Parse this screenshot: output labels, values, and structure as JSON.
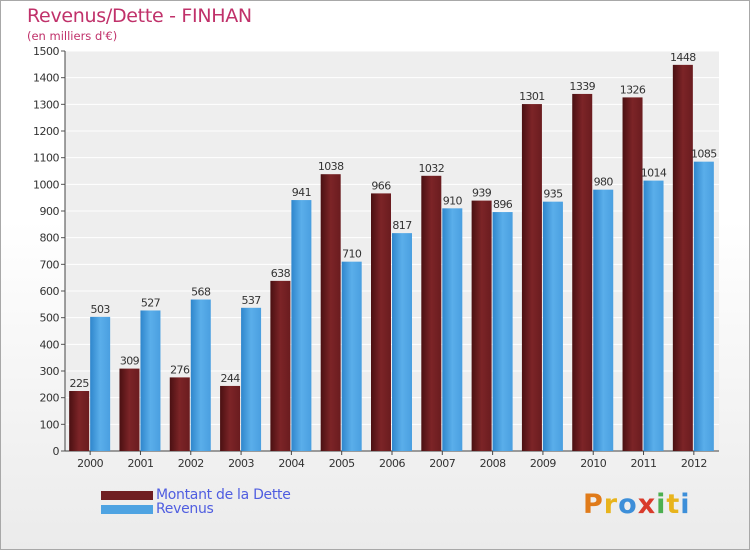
{
  "title": "Revenus/Dette - FINHAN",
  "subtitle": "(en milliers d'€)",
  "colors": {
    "debt": "#701f22",
    "revenue": "#4ea3e2"
  },
  "legend": {
    "debt_label": "Montant de la Dette",
    "revenue_label": "Revenus"
  },
  "logo": {
    "letters": [
      "P",
      "r",
      "o",
      "x",
      "i",
      "t",
      "i"
    ],
    "colors": [
      "#e07b1a",
      "#e8b41c",
      "#3d8fd9",
      "#d93b2b",
      "#4caf50",
      "#e8b41c",
      "#3d8fd9"
    ]
  },
  "chart_data": {
    "type": "bar",
    "title": "Revenus/Dette - FINHAN",
    "ylabel": "(en milliers d'€)",
    "categories": [
      "2000",
      "2001",
      "2002",
      "2003",
      "2004",
      "2005",
      "2006",
      "2007",
      "2008",
      "2009",
      "2010",
      "2011",
      "2012"
    ],
    "series": [
      {
        "name": "Montant de la Dette",
        "values": [
          225,
          309,
          276,
          244,
          638,
          1038,
          966,
          1032,
          939,
          1301,
          1339,
          1326,
          1448
        ]
      },
      {
        "name": "Revenus",
        "values": [
          503,
          527,
          568,
          537,
          941,
          710,
          817,
          910,
          896,
          935,
          980,
          1014,
          1085
        ]
      }
    ],
    "ylim": [
      0,
      1500
    ],
    "yticks": [
      0,
      100,
      200,
      300,
      400,
      500,
      600,
      700,
      800,
      900,
      1000,
      1100,
      1200,
      1300,
      1400,
      1500
    ],
    "grid": true,
    "legend": "bottom-left"
  }
}
